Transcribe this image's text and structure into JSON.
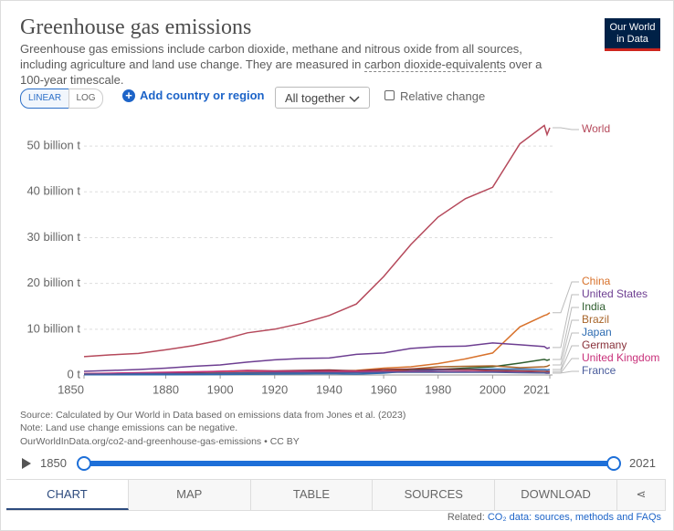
{
  "header": {
    "title": "Greenhouse gas emissions",
    "subtitle": [
      "Greenhouse gas emissions include carbon dioxide, methane and nitrous oxide from all sources, including agriculture and land use change. They are measured in ",
      "carbon dioxide-equivalents",
      " over a 100-year timescale."
    ],
    "logo": [
      "Our World",
      "in Data"
    ]
  },
  "controls": {
    "linear": "LINEAR",
    "log": "LOG",
    "add": "Add country or region",
    "dropdown": "All together",
    "relative": "Relative change"
  },
  "chart_data": {
    "type": "line",
    "x": [
      1850,
      1860,
      1870,
      1880,
      1890,
      1900,
      1910,
      1920,
      1930,
      1940,
      1950,
      1960,
      1970,
      1980,
      1990,
      2000,
      2010,
      2019,
      2020,
      2021
    ],
    "xlim": [
      1850,
      2021
    ],
    "xticks": [
      1850,
      1880,
      1900,
      1920,
      1940,
      1960,
      1980,
      2000,
      2021
    ],
    "ylim": [
      0,
      55
    ],
    "yticks": [
      {
        "value": 0,
        "label": "0 t"
      },
      {
        "value": 10,
        "label": "10 billion t"
      },
      {
        "value": 20,
        "label": "20 billion t"
      },
      {
        "value": 30,
        "label": "30 billion t"
      },
      {
        "value": 40,
        "label": "40 billion t"
      },
      {
        "value": 50,
        "label": "50 billion t"
      }
    ],
    "grid": true,
    "series": [
      {
        "name": "World",
        "color": "#b5495b",
        "values": [
          4.0,
          4.4,
          4.7,
          5.5,
          6.4,
          7.6,
          9.2,
          10.0,
          11.3,
          13.0,
          15.5,
          21.5,
          28.5,
          34.5,
          38.5,
          41.0,
          50.5,
          54.5,
          52.5,
          54.0
        ]
      },
      {
        "name": "China",
        "color": "#d8722c",
        "values": [
          0.3,
          0.3,
          0.3,
          0.3,
          0.4,
          0.5,
          0.6,
          0.7,
          0.8,
          0.9,
          1.0,
          1.5,
          1.8,
          2.5,
          3.5,
          4.8,
          10.5,
          13.0,
          13.2,
          13.6
        ]
      },
      {
        "name": "United States",
        "color": "#6d3e91",
        "values": [
          0.8,
          1.0,
          1.2,
          1.5,
          1.9,
          2.2,
          2.8,
          3.3,
          3.6,
          3.7,
          4.5,
          4.8,
          5.8,
          6.2,
          6.3,
          7.0,
          6.6,
          6.2,
          5.8,
          6.0
        ]
      },
      {
        "name": "India",
        "color": "#2e5d2e",
        "values": [
          0.2,
          0.2,
          0.3,
          0.3,
          0.3,
          0.4,
          0.4,
          0.5,
          0.5,
          0.6,
          0.7,
          0.8,
          1.0,
          1.2,
          1.5,
          1.8,
          2.6,
          3.4,
          3.2,
          3.4
        ]
      },
      {
        "name": "Brazil",
        "color": "#a8652a",
        "values": [
          0.1,
          0.1,
          0.1,
          0.1,
          0.2,
          0.2,
          0.2,
          0.3,
          0.4,
          0.5,
          0.7,
          0.9,
          1.3,
          1.8,
          1.9,
          2.0,
          1.6,
          1.8,
          1.9,
          2.2
        ]
      },
      {
        "name": "Japan",
        "color": "#2c6bb1",
        "values": [
          0.05,
          0.05,
          0.05,
          0.06,
          0.07,
          0.1,
          0.15,
          0.2,
          0.25,
          0.3,
          0.2,
          0.4,
          0.9,
          1.1,
          1.2,
          1.3,
          1.3,
          1.2,
          1.1,
          1.2
        ]
      },
      {
        "name": "Germany",
        "color": "#883039",
        "values": [
          0.2,
          0.3,
          0.4,
          0.5,
          0.6,
          0.8,
          1.0,
          0.9,
          1.0,
          1.1,
          0.9,
          1.2,
          1.3,
          1.3,
          1.2,
          1.0,
          0.9,
          0.8,
          0.75,
          0.78
        ]
      },
      {
        "name": "United Kingdom",
        "color": "#c8307a",
        "values": [
          0.3,
          0.4,
          0.5,
          0.6,
          0.7,
          0.8,
          0.9,
          0.8,
          0.8,
          0.8,
          0.8,
          0.8,
          0.8,
          0.75,
          0.8,
          0.7,
          0.6,
          0.45,
          0.4,
          0.42
        ]
      },
      {
        "name": "France",
        "color": "#4a5c9c",
        "values": [
          0.2,
          0.2,
          0.3,
          0.3,
          0.3,
          0.4,
          0.5,
          0.5,
          0.5,
          0.5,
          0.5,
          0.6,
          0.6,
          0.6,
          0.6,
          0.6,
          0.5,
          0.45,
          0.4,
          0.42
        ]
      }
    ]
  },
  "footer": {
    "source": "Source: Calculated by Our World in Data based on emissions data from Jones et al. (2023)",
    "note": "Note: Land use change emissions can be negative.",
    "url": "OurWorldInData.org/co2-and-greenhouse-gas-emissions • CC BY"
  },
  "timeline": {
    "start": 1850,
    "end": 2021
  },
  "tabs": [
    "CHART",
    "MAP",
    "TABLE",
    "SOURCES",
    "DOWNLOAD"
  ],
  "related": {
    "label": "Related:",
    "link": "CO₂ data: sources, methods and FAQs"
  }
}
